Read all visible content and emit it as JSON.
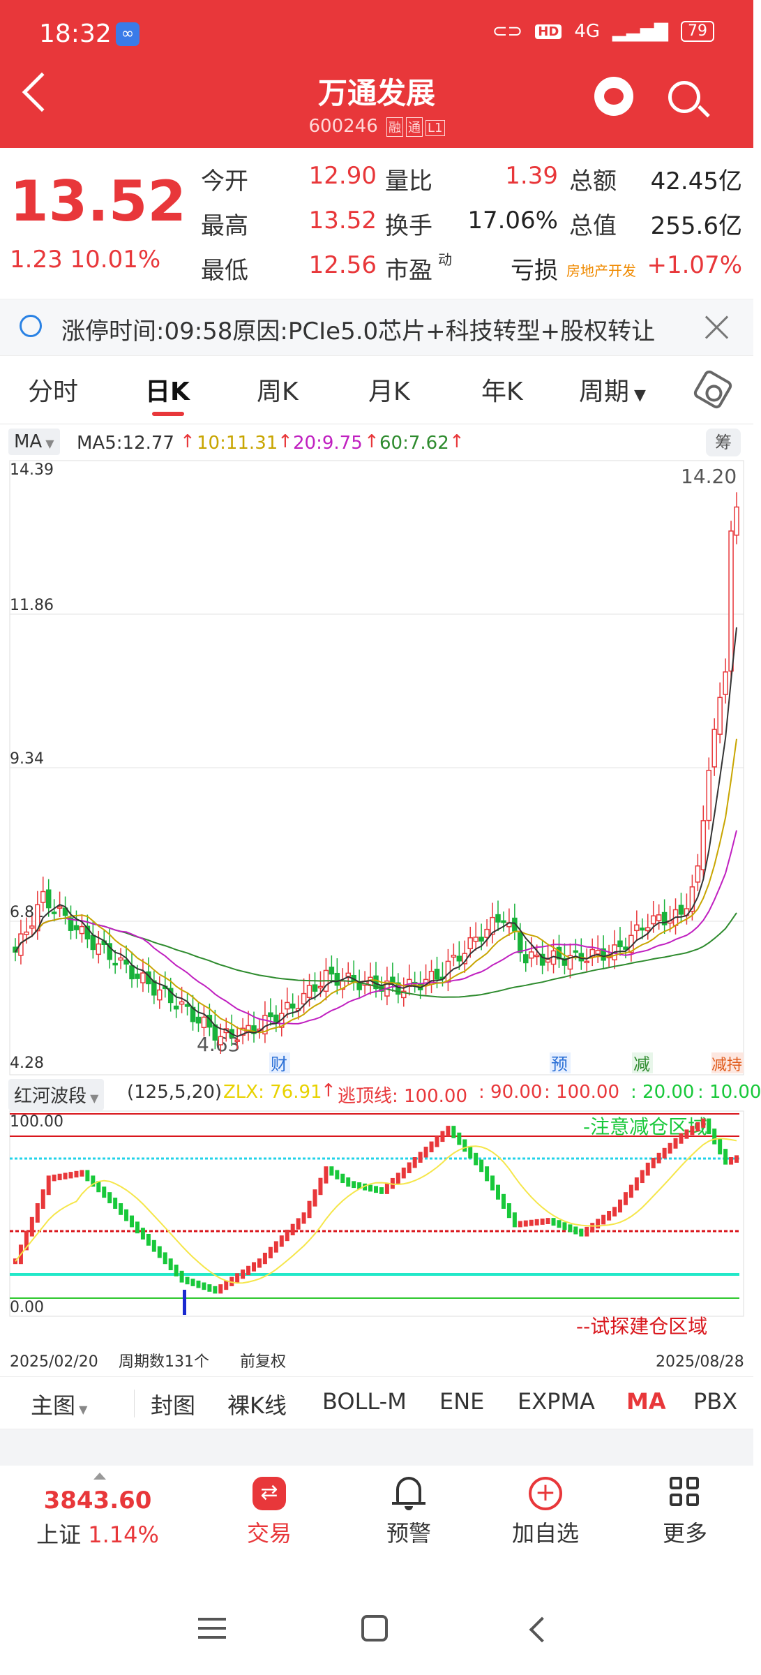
{
  "status_bar": {
    "time": "18:32",
    "hd": "HD",
    "network": "4G",
    "battery": "79"
  },
  "header": {
    "title": "万通发展",
    "code": "600246",
    "tags": [
      "融",
      "通",
      "L1"
    ]
  },
  "quote": {
    "price": "13.52",
    "change": "1.23",
    "change_pct": "10.01%",
    "rows": [
      {
        "l1": "今开",
        "v1": "12.90",
        "l2": "量比",
        "v2": "1.39",
        "l3": "总额",
        "v3": "42.45亿"
      },
      {
        "l1": "最高",
        "v1": "13.52",
        "l2": "换手",
        "v2": "17.06%",
        "l3": "总值",
        "v3": "255.6亿"
      },
      {
        "l1": "最低",
        "v1": "12.56",
        "l2": "市盈",
        "l2_sup": "动",
        "v2": "亏损",
        "l3": "房地产开发",
        "v3": "+1.07%"
      }
    ]
  },
  "notice": {
    "text": "涨停时间:09:58原因:PCIe5.0芯片+科技转型+股权转让"
  },
  "tabs": [
    "分时",
    "日K",
    "周K",
    "月K",
    "年K",
    "周期"
  ],
  "ma_legend": {
    "selector": "MA",
    "ma5": "MA5:12.77",
    "ma10": "10:11.31",
    "ma20": "20:9.75",
    "ma60": "60:7.62",
    "chip": "筹"
  },
  "main_chart": {
    "y_labels": [
      "14.39",
      "11.86",
      "9.34",
      "6.81",
      "4.28"
    ],
    "high_label": "14.20",
    "low_label": "4.63",
    "event_tags": [
      "财",
      "预",
      "减",
      "减持"
    ]
  },
  "sub_indicator": {
    "selector": "红河波段",
    "params": "(125,5,20)",
    "zlx": "ZLX: 76.91",
    "escape_label": "逃顶线: 100.00",
    "v90": ": 90.00",
    "v100": ": 100.00",
    "v20": ": 20.00",
    "v10": ": 10.00",
    "y_top": "100.00",
    "y_bottom": "0.00",
    "zone_top": "-注意减仓区域",
    "zone_bottom": "--试探建仓区域"
  },
  "x_axis": {
    "start": "2025/02/20",
    "periods": "周期数131个",
    "adjust": "前复权",
    "end": "2025/08/28"
  },
  "indicator_bar": {
    "main": "主图",
    "items": [
      "封图",
      "裸K线",
      "BOLL-M",
      "ENE",
      "EXPMA",
      "MA",
      "PBX"
    ],
    "active": "MA"
  },
  "bottom_nav": {
    "index_value": "3843.60",
    "index_name": "上证",
    "index_change": "1.14%",
    "items": [
      "交易",
      "预警",
      "加自选",
      "更多"
    ]
  },
  "colors": {
    "brand_red": "#e8373a",
    "up": "#e8373a",
    "down": "#18b23a",
    "ma5": "#333333",
    "ma10": "#c8a500",
    "ma20": "#c020c0",
    "ma60": "#2e8b2e"
  }
}
